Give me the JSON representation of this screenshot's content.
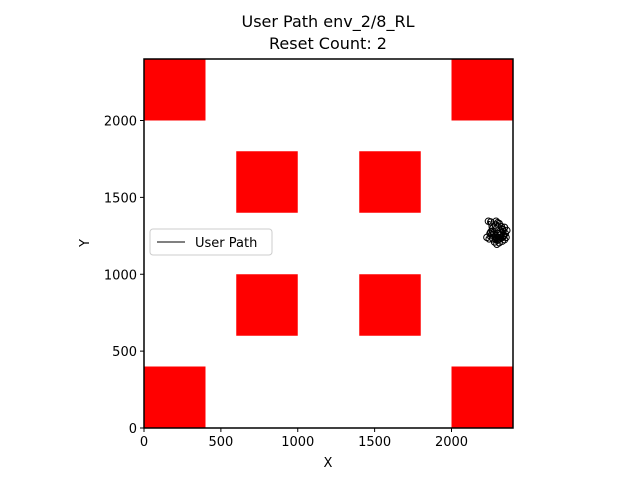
{
  "chart_data": {
    "type": "scatter",
    "title": "User Path env_2/8_RL",
    "subtitle": "Reset Count: 2",
    "xlabel": "X",
    "ylabel": "Y",
    "xlim": [
      0,
      2400
    ],
    "ylim": [
      0,
      2400
    ],
    "x_ticks": [
      0,
      500,
      1000,
      1500,
      2000
    ],
    "y_ticks": [
      0,
      500,
      1000,
      1500,
      2000
    ],
    "grid": false,
    "legend": {
      "placement": "center-left",
      "entries": [
        "User Path"
      ]
    },
    "obstacle_color": "#ff0000",
    "obstacles": [
      {
        "x": [
          0,
          400
        ],
        "y": [
          2000,
          2400
        ]
      },
      {
        "x": [
          2000,
          2400
        ],
        "y": [
          2000,
          2400
        ]
      },
      {
        "x": [
          600,
          1000
        ],
        "y": [
          1400,
          1800
        ]
      },
      {
        "x": [
          1400,
          1800
        ],
        "y": [
          1400,
          1800
        ]
      },
      {
        "x": [
          600,
          1000
        ],
        "y": [
          600,
          1000
        ]
      },
      {
        "x": [
          1400,
          1800
        ],
        "y": [
          600,
          1000
        ]
      },
      {
        "x": [
          0,
          400
        ],
        "y": [
          0,
          400
        ]
      },
      {
        "x": [
          2000,
          2400
        ],
        "y": [
          0,
          400
        ]
      }
    ],
    "series": [
      {
        "name": "User Path",
        "marker": "circle-open",
        "x": [
          2230,
          2245,
          2260,
          2255,
          2270,
          2285,
          2300,
          2290,
          2310,
          2325,
          2335,
          2320,
          2340,
          2355,
          2345,
          2330,
          2310,
          2295,
          2280,
          2270,
          2285,
          2300,
          2315,
          2330,
          2345,
          2360,
          2350,
          2335,
          2320,
          2305,
          2290,
          2275,
          2265,
          2250,
          2240,
          2255,
          2300,
          2318,
          2338,
          2285
        ],
        "y": [
          1240,
          1230,
          1255,
          1275,
          1300,
          1320,
          1335,
          1345,
          1330,
          1310,
          1290,
          1270,
          1255,
          1240,
          1225,
          1215,
          1205,
          1195,
          1210,
          1230,
          1250,
          1265,
          1280,
          1295,
          1305,
          1285,
          1265,
          1250,
          1240,
          1225,
          1240,
          1260,
          1280,
          1265,
          1345,
          1340,
          1225,
          1255,
          1245,
          1230
        ]
      }
    ]
  }
}
